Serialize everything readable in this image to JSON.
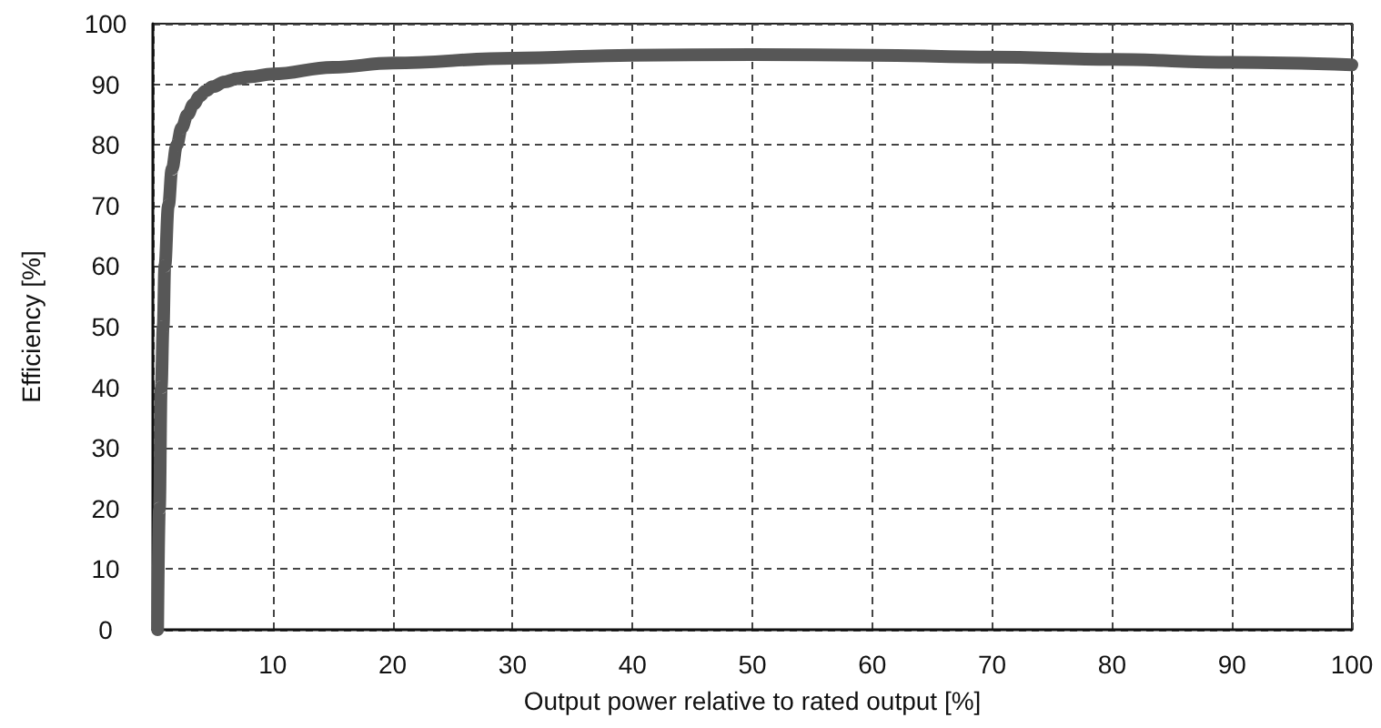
{
  "chart_data": {
    "type": "line",
    "xlabel": "Output power relative to rated output [%]",
    "ylabel": "Efficiency [%]",
    "x": [
      0.4,
      0.55,
      0.7,
      0.86,
      1.0,
      1.3,
      1.6,
      2,
      2.4,
      2.9,
      3.4,
      3.9,
      4.4,
      5,
      6,
      7,
      8,
      10,
      15,
      20,
      30,
      40,
      50,
      60,
      70,
      80,
      90,
      100
    ],
    "values": [
      0,
      20,
      40,
      50,
      60,
      70,
      76,
      80,
      82.8,
      85,
      86.7,
      88,
      88.9,
      89.6,
      90.4,
      90.9,
      91.2,
      91.7,
      92.8,
      93.5,
      94.3,
      94.8,
      94.9,
      94.8,
      94.5,
      94.1,
      93.6,
      93.2
    ],
    "color": "#575757",
    "xlim": [
      0,
      100
    ],
    "xticks": [
      {
        "value": 0,
        "label": null
      },
      10,
      20,
      30,
      40,
      50,
      60,
      70,
      80,
      90,
      100
    ],
    "ylim": [
      0,
      100
    ],
    "yticks": [
      0,
      10,
      20,
      30,
      40,
      50,
      60,
      70,
      80,
      90,
      100
    ],
    "grid": true,
    "line_style": "solid"
  }
}
